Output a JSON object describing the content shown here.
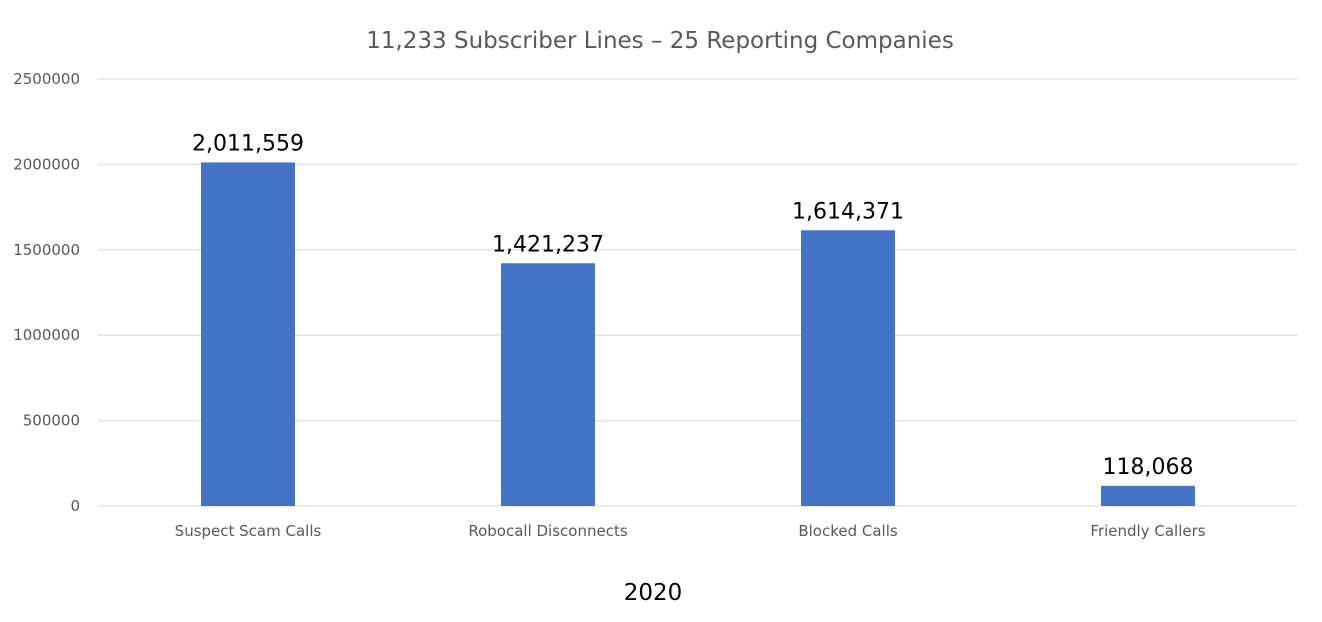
{
  "chart_data": {
    "type": "bar",
    "title": "11,233 Subscriber Lines – 25 Reporting Companies",
    "xlabel": "2020",
    "ylabel": "",
    "categories": [
      "Suspect Scam Calls",
      "Robocall Disconnects",
      "Blocked Calls",
      "Friendly Callers"
    ],
    "values": [
      2011559,
      1421237,
      1614371,
      118068
    ],
    "data_labels": [
      "2,011,559",
      "1,421,237",
      "1,614,371",
      "118,068"
    ],
    "ylim": [
      0,
      2500000
    ],
    "y_ticks": [
      0,
      500000,
      1000000,
      1500000,
      2000000,
      2500000
    ],
    "y_tick_labels": [
      "0",
      "500000",
      "1000000",
      "1500000",
      "2000000",
      "2500000"
    ],
    "grid": true,
    "legend": "none",
    "bar_color": "#4472c4"
  }
}
